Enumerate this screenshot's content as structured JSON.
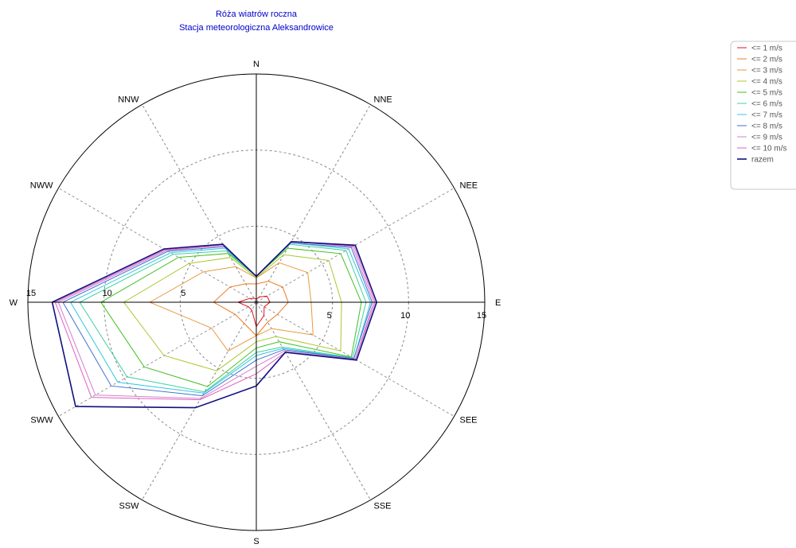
{
  "chart_data": {
    "type": "radar",
    "title": "Róża wiatrów roczna",
    "subtitle": "Stacja meteorologiczna Aleksandrowice",
    "directions": [
      "N",
      "NNE",
      "NEE",
      "E",
      "SEE",
      "SSE",
      "S",
      "SSW",
      "SWW",
      "W",
      "NWW",
      "NNW"
    ],
    "r_range": [
      0,
      15
    ],
    "r_ticks": [
      5,
      10,
      15
    ],
    "tick_labels": {
      "left": [
        "5",
        "10",
        "15"
      ],
      "right": [
        "5",
        "10",
        "15"
      ]
    },
    "grid": true,
    "legend_position": "top-right",
    "series": [
      {
        "name": "<= 1 m/s",
        "color": "#e0101a",
        "values": [
          0.2,
          0.4,
          0.8,
          0.9,
          0.6,
          1.0,
          1.6,
          0.6,
          0.6,
          1.2,
          0.5,
          0.3
        ]
      },
      {
        "name": "<= 2 m/s",
        "color": "#f07820",
        "values": [
          1.2,
          1.6,
          2.0,
          2.1,
          1.6,
          1.5,
          2.2,
          1.6,
          1.6,
          2.8,
          2.0,
          1.4
        ]
      },
      {
        "name": "<= 3 m/s",
        "color": "#e89a40",
        "values": [
          1.6,
          3.0,
          3.9,
          3.6,
          4.3,
          2.0,
          2.2,
          3.7,
          3.4,
          7.0,
          4.0,
          2.7
        ]
      },
      {
        "name": "<= 4 m/s",
        "color": "#a8c830",
        "values": [
          1.6,
          3.6,
          5.5,
          5.6,
          6.4,
          2.6,
          2.6,
          5.2,
          7.0,
          8.7,
          5.1,
          3.4
        ]
      },
      {
        "name": "<= 5 m/s",
        "color": "#40c020",
        "values": [
          1.7,
          4.1,
          6.4,
          6.9,
          7.2,
          3.0,
          3.0,
          6.4,
          8.5,
          10.2,
          5.9,
          3.7
        ]
      },
      {
        "name": "<= 6 m/s",
        "color": "#40d0a0",
        "values": [
          1.7,
          4.4,
          6.8,
          7.2,
          7.3,
          3.4,
          3.3,
          6.8,
          9.8,
          11.6,
          6.3,
          3.9
        ]
      },
      {
        "name": "<= 7 m/s",
        "color": "#30c8e0",
        "values": [
          1.7,
          4.5,
          7.0,
          7.5,
          7.4,
          3.5,
          3.5,
          6.9,
          10.5,
          12.2,
          6.5,
          4.1
        ]
      },
      {
        "name": "<= 8 m/s",
        "color": "#4070d0",
        "values": [
          1.7,
          4.5,
          7.2,
          7.6,
          7.4,
          3.6,
          3.8,
          7.1,
          11.0,
          12.7,
          6.7,
          4.2
        ]
      },
      {
        "name": "<= 9 m/s",
        "color": "#d080d0",
        "values": [
          1.7,
          4.6,
          7.3,
          7.7,
          7.5,
          3.7,
          4.2,
          7.3,
          12.2,
          13.0,
          6.8,
          4.3
        ]
      },
      {
        "name": "<= 10 m/s",
        "color": "#e060c0",
        "values": [
          1.7,
          4.6,
          7.4,
          7.8,
          7.5,
          3.8,
          4.7,
          7.4,
          12.5,
          13.2,
          6.9,
          4.3
        ]
      },
      {
        "name": "razem",
        "color": "#101080",
        "values": [
          1.7,
          4.6,
          7.5,
          7.9,
          7.6,
          3.8,
          5.5,
          8.0,
          13.7,
          13.4,
          7.0,
          4.4
        ]
      }
    ]
  }
}
